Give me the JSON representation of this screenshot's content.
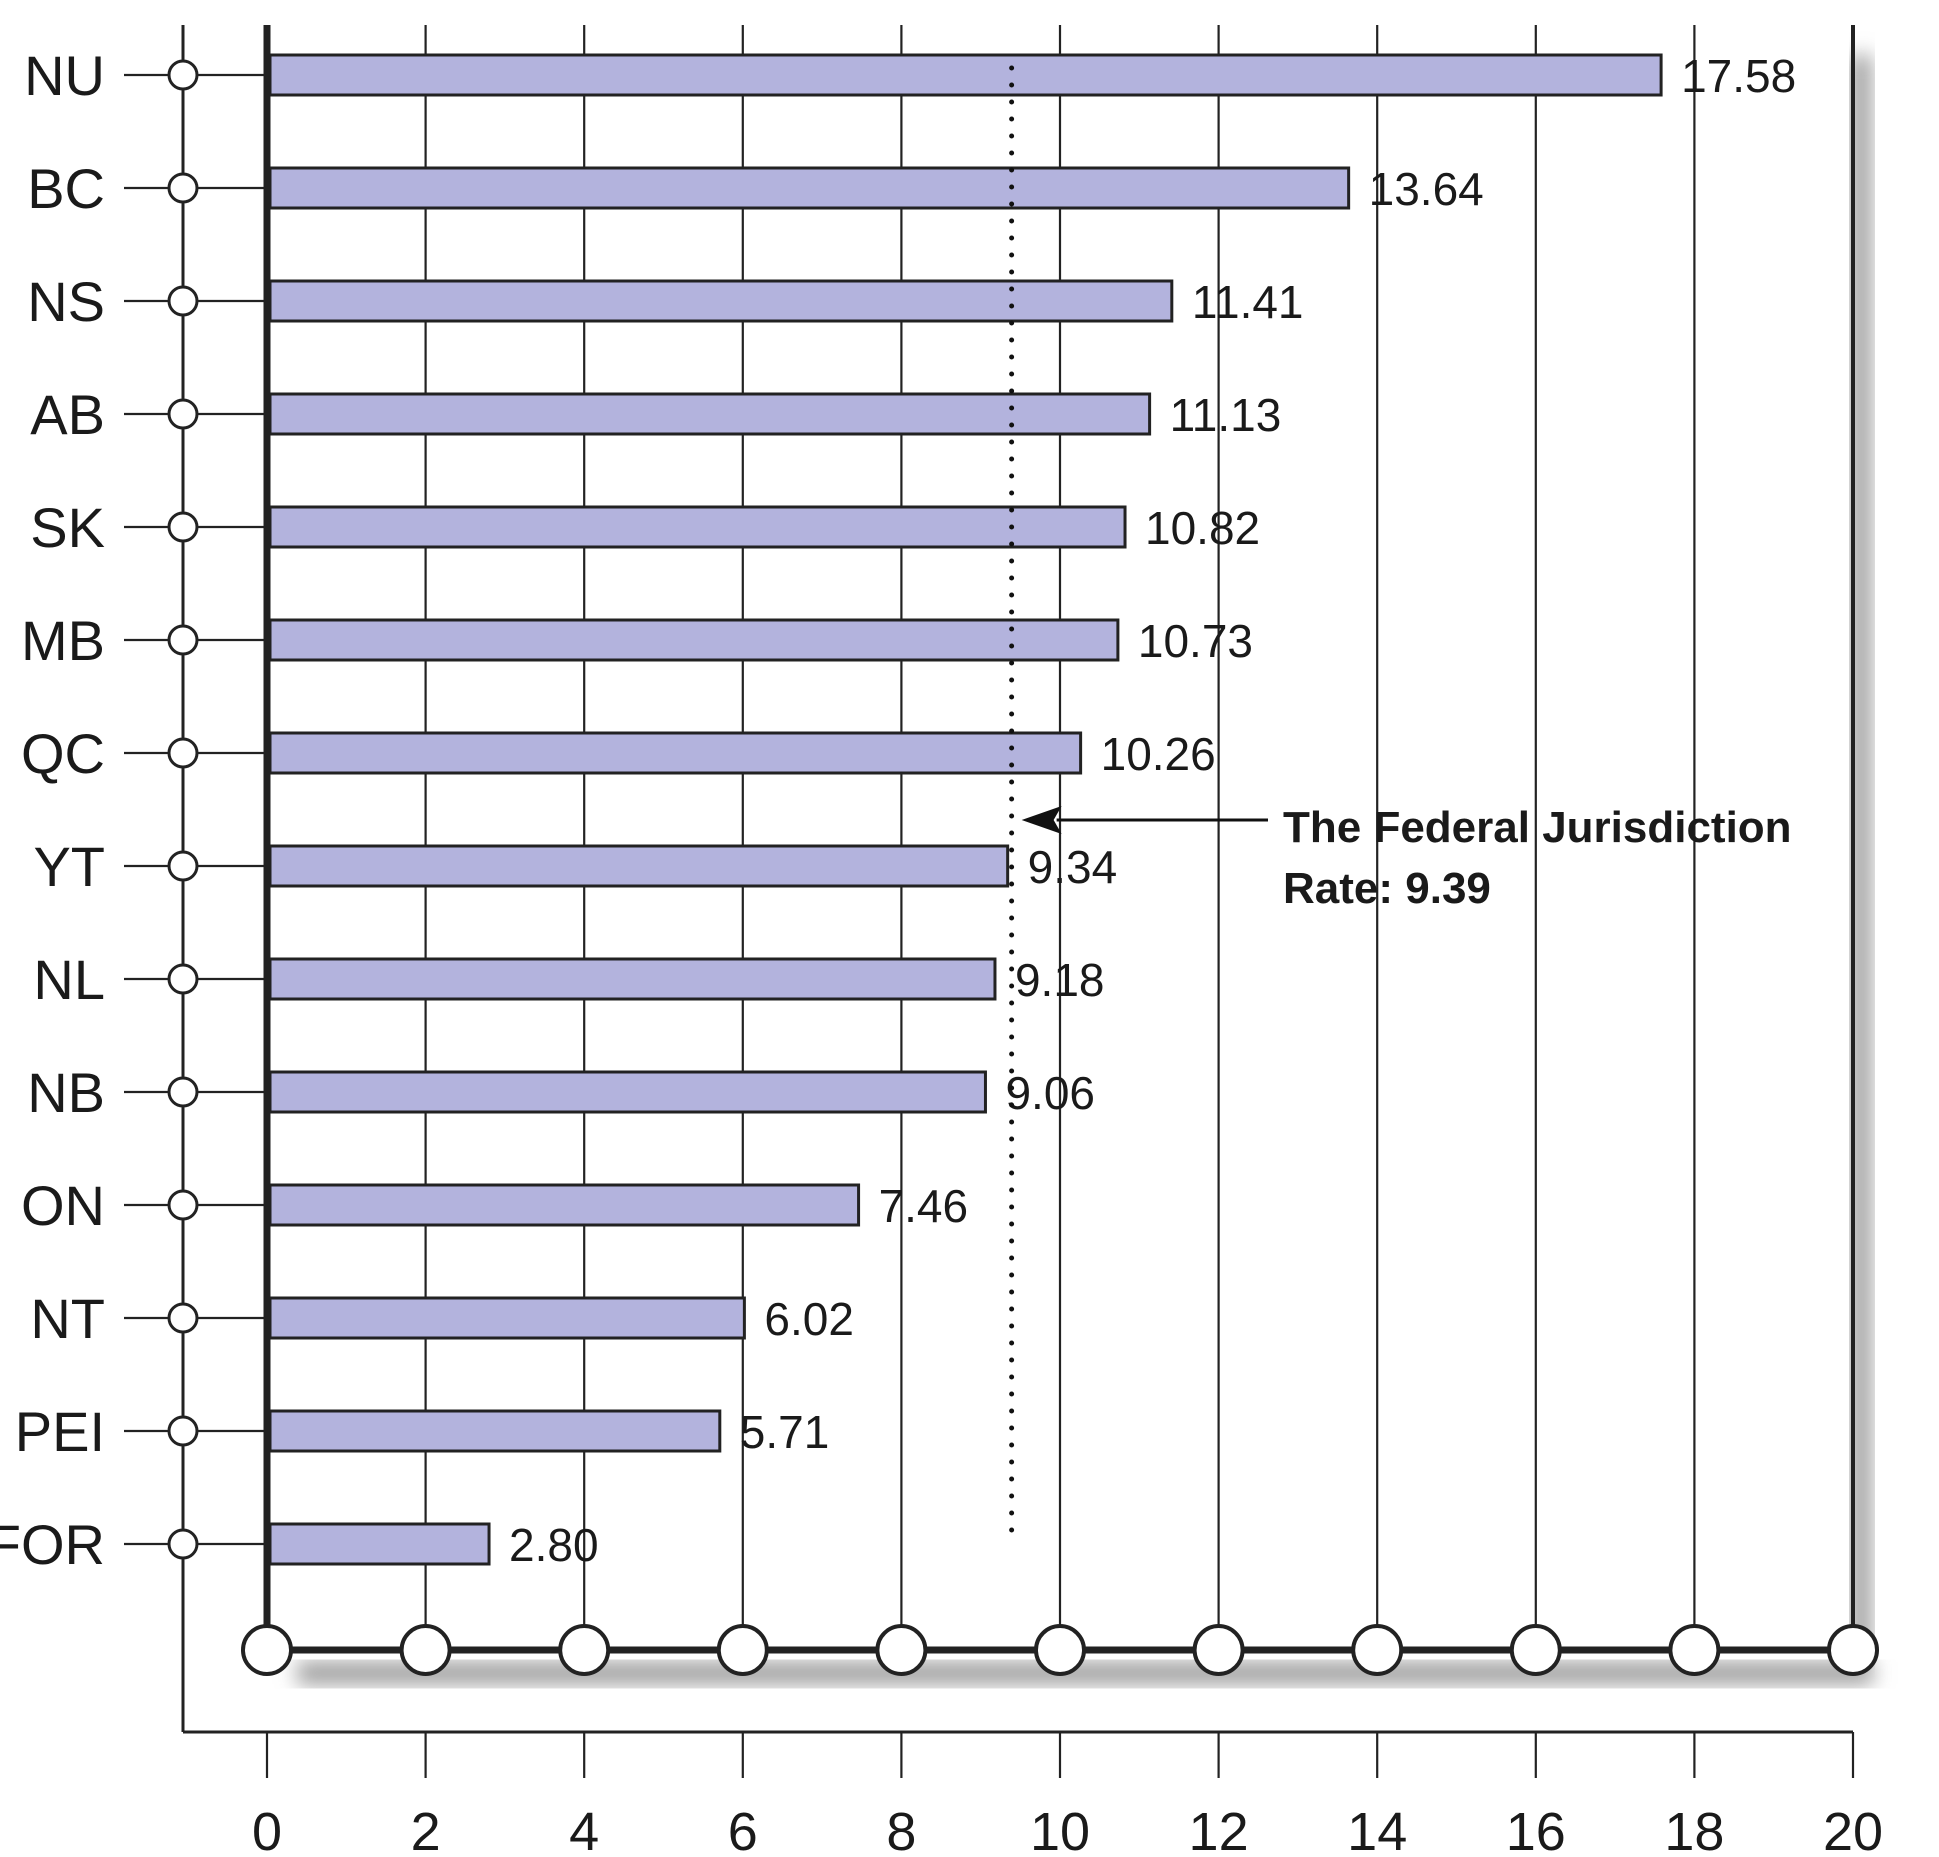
{
  "colors": {
    "bar_fill": "#b3b3dd",
    "bar_stroke": "#222222",
    "axis": "#222222",
    "grid": "#222222",
    "marker_fill": "#ffffff",
    "shadow": "#9a9a9a"
  },
  "chart_data": {
    "type": "bar",
    "orientation": "horizontal",
    "title": "",
    "xlabel": "",
    "ylabel": "",
    "categories": [
      "NU",
      "BC",
      "NS",
      "AB",
      "SK",
      "MB",
      "QC",
      "YT",
      "NL",
      "NB",
      "ON",
      "NT",
      "PEI",
      "FOR"
    ],
    "values": [
      17.58,
      13.64,
      11.41,
      11.13,
      10.82,
      10.73,
      10.26,
      9.34,
      9.18,
      9.06,
      7.46,
      6.02,
      5.71,
      2.8
    ],
    "value_labels": [
      "17.58",
      "13.64",
      "11.41",
      "11.13",
      "10.82",
      "10.73",
      "10.26",
      "9.34",
      "9.18",
      "9.06",
      "7.46",
      "6.02",
      "5.71",
      "2.80"
    ],
    "xlim": [
      0,
      20
    ],
    "xticks": [
      0,
      2,
      4,
      6,
      8,
      10,
      12,
      14,
      16,
      18,
      20
    ],
    "xtick_labels": [
      "0",
      "2",
      "4",
      "6",
      "8",
      "10",
      "12",
      "14",
      "16",
      "18",
      "20"
    ],
    "grid": true,
    "reference_line": {
      "value": 9.39,
      "style": "dotted",
      "label_line1": "The Federal Jurisdiction",
      "label_line2": "Rate: 9.39"
    }
  }
}
